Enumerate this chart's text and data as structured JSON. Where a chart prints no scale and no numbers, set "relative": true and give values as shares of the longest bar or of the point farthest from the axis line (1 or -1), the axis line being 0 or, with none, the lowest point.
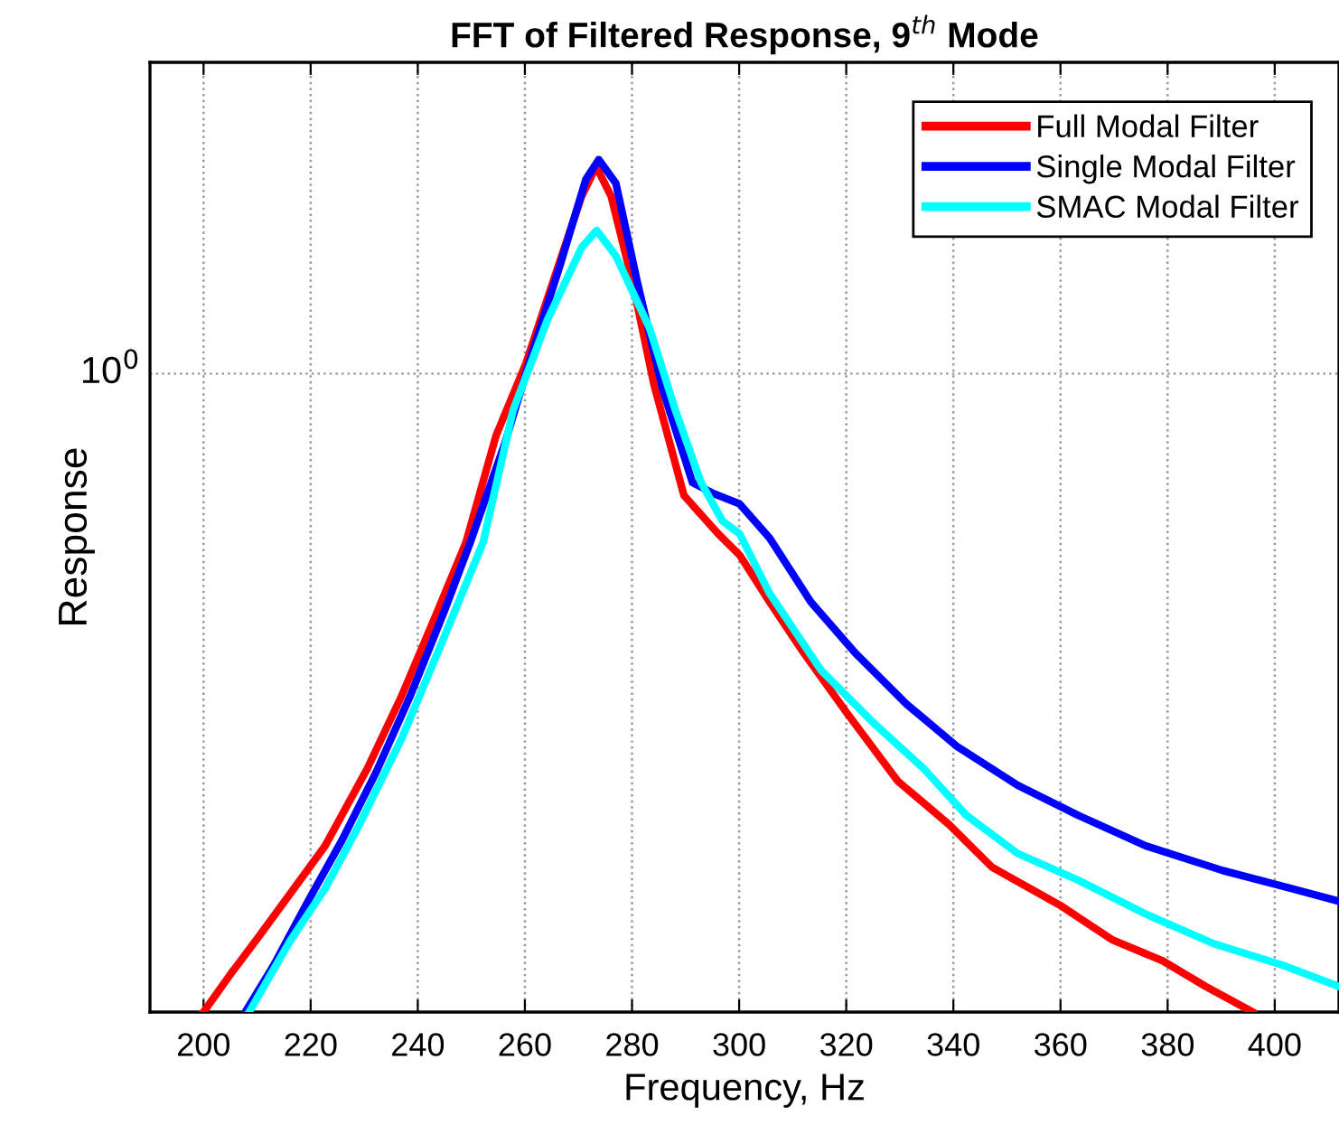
{
  "chart_data": {
    "type": "line",
    "title": "FFT of Filtered Response, 9$^{th}$ Mode",
    "xlabel": "Frequency, Hz",
    "ylabel": "Response",
    "relative": true,
    "xlim": [
      190,
      412
    ],
    "xticks": [
      200,
      220,
      240,
      260,
      280,
      300,
      320,
      340,
      360,
      380,
      400
    ],
    "grid": "x",
    "legend": "top right",
    "line_style": "solid",
    "marker": "none",
    "ref_lines": [
      {
        "axis": "y",
        "value": 0.749,
        "color": "#a0a0a0",
        "line_style": "dotted"
      }
    ],
    "annotations": [
      "10$^{0}$"
    ],
    "series": [
      {
        "name": "Full Modal Filter",
        "color": "#ff0000",
        "x": [
          200,
          205.1,
          209.9,
          216.3,
          222.7,
          230.6,
          237.0,
          243.4,
          249.0,
          254.6,
          260.2,
          265.8,
          270.6,
          273.3,
          276.1,
          280.1,
          284.1,
          289.7,
          296.1,
          300.1,
          305.7,
          312.1,
          320.1,
          329.6,
          339.2,
          347.2,
          360.0,
          369.6,
          379.1,
          387.1,
          395.9
        ],
        "values": [
          0,
          0.045,
          0.085,
          0.14,
          0.195,
          0.286,
          0.371,
          0.466,
          0.551,
          0.676,
          0.761,
          0.867,
          0.957,
          0.992,
          0.957,
          0.856,
          0.736,
          0.606,
          0.561,
          0.536,
          0.481,
          0.421,
          0.351,
          0.271,
          0.22,
          0.17,
          0.125,
          0.085,
          0.06,
          0.03,
          0
        ]
      },
      {
        "name": "Single Modal Filter",
        "color": "#0000ff",
        "x": [
          207.8,
          213.1,
          219.5,
          225.8,
          232.2,
          238.6,
          245.0,
          249.8,
          256.2,
          261.0,
          266.6,
          271.4,
          273.8,
          277.0,
          281.0,
          285.7,
          291.3,
          295.3,
          300.1,
          305.7,
          313.4,
          321.7,
          331.3,
          340.8,
          352.0,
          363.2,
          375.9,
          390.3,
          403.1,
          412
        ],
        "values": [
          0,
          0.055,
          0.13,
          0.201,
          0.281,
          0.371,
          0.471,
          0.551,
          0.666,
          0.766,
          0.877,
          0.977,
          1.0,
          0.972,
          0.856,
          0.731,
          0.621,
          0.608,
          0.596,
          0.556,
          0.481,
          0.421,
          0.361,
          0.311,
          0.266,
          0.231,
          0.195,
          0.166,
          0.145,
          0.13
        ]
      },
      {
        "name": "SMAC Modal Filter",
        "color": "#00ffff",
        "x": [
          208.5,
          216.3,
          222.7,
          229.1,
          237.0,
          245.0,
          252.2,
          257.8,
          264.2,
          270.6,
          273.4,
          277.0,
          283.3,
          288.1,
          292.9,
          296.9,
          300.1,
          305.7,
          315.3,
          324.8,
          334.4,
          342.4,
          352.0,
          363.2,
          375.9,
          388.7,
          401.5,
          412
        ],
        "values": [
          0,
          0.085,
          0.145,
          0.22,
          0.321,
          0.441,
          0.551,
          0.706,
          0.812,
          0.897,
          0.917,
          0.887,
          0.802,
          0.706,
          0.621,
          0.576,
          0.561,
          0.491,
          0.401,
          0.341,
          0.286,
          0.231,
          0.186,
          0.155,
          0.115,
          0.08,
          0.055,
          0.03
        ]
      }
    ]
  }
}
